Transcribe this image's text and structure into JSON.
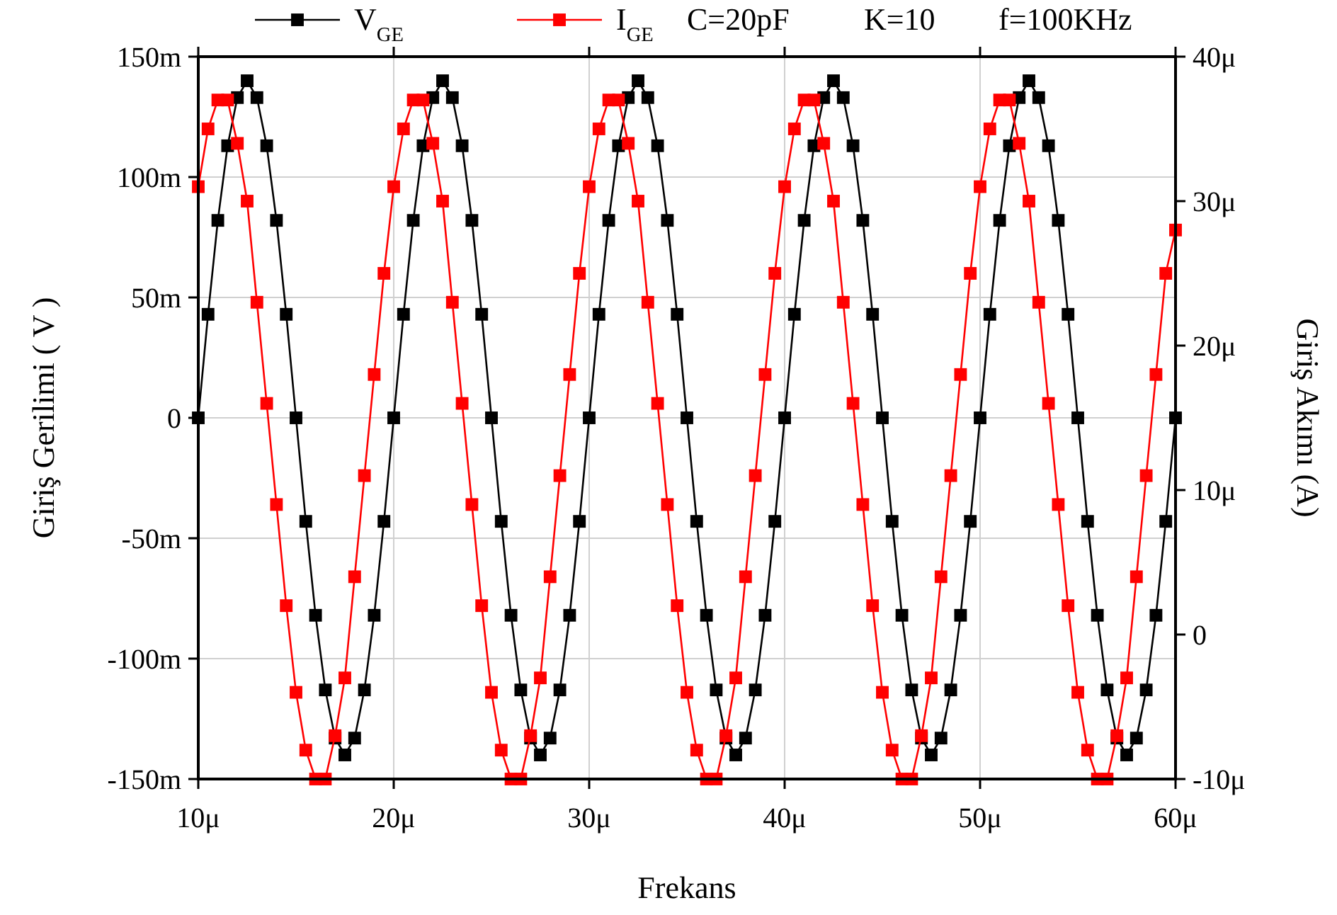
{
  "chart_data": {
    "type": "line",
    "xlabel": "Frekans",
    "ylabel": "Giriş Gerilimi ( V )",
    "y2label": "Giriş Akımı (A)",
    "annotations": [
      "C=20pF",
      "K=10",
      "f=100KHz"
    ],
    "x": [
      10,
      10.5,
      11,
      11.5,
      12,
      12.5,
      13,
      13.5,
      14,
      14.5,
      15,
      15.5,
      16,
      16.5,
      17,
      17.5,
      18,
      18.5,
      19,
      19.5,
      20,
      20.5,
      21,
      21.5,
      22,
      22.5,
      23,
      23.5,
      24,
      24.5,
      25,
      25.5,
      26,
      26.5,
      27,
      27.5,
      28,
      28.5,
      29,
      29.5,
      30,
      30.5,
      31,
      31.5,
      32,
      32.5,
      33,
      33.5,
      34,
      34.5,
      35,
      35.5,
      36,
      36.5,
      37,
      37.5,
      38,
      38.5,
      39,
      39.5,
      40,
      40.5,
      41,
      41.5,
      42,
      42.5,
      43,
      43.5,
      44,
      44.5,
      45,
      45.5,
      46,
      46.5,
      47,
      47.5,
      48,
      48.5,
      49,
      49.5,
      50,
      50.5,
      51,
      51.5,
      52,
      52.5,
      53,
      53.5,
      54,
      54.5,
      55,
      55.5,
      56,
      56.5,
      57,
      57.5,
      58,
      58.5,
      59,
      59.5,
      60
    ],
    "series": [
      {
        "name": "V$_{GE}$",
        "color": "#000000",
        "values": [
          0,
          43,
          82,
          113,
          133,
          140,
          133,
          113,
          82,
          43,
          0,
          -43,
          -82,
          -113,
          -133,
          -140,
          -133,
          -113,
          -82,
          -43,
          0,
          43,
          82,
          113,
          133,
          140,
          133,
          113,
          82,
          43,
          0,
          -43,
          -82,
          -113,
          -133,
          -140,
          -133,
          -113,
          -82,
          -43,
          0,
          43,
          82,
          113,
          133,
          140,
          133,
          113,
          82,
          43,
          0,
          -43,
          -82,
          -113,
          -133,
          -140,
          -133,
          -113,
          -82,
          -43,
          0,
          43,
          82,
          113,
          133,
          140,
          133,
          113,
          82,
          43,
          0,
          -43,
          -82,
          -113,
          -133,
          -140,
          -133,
          -113,
          -82,
          -43,
          0,
          43,
          82,
          113,
          133,
          140,
          133,
          113,
          82,
          43,
          0,
          -43,
          -82,
          -113,
          -133,
          -140,
          -133,
          -113,
          -82,
          -43,
          0
        ]
      },
      {
        "name": "I$_{GE}$",
        "color": "#ff0000",
        "axis": "y2",
        "values": [
          31,
          35,
          37,
          37,
          34,
          30,
          23,
          16,
          9,
          2,
          -4,
          -8,
          -10,
          -10,
          -7,
          -3,
          4,
          11,
          18,
          25,
          31,
          35,
          37,
          37,
          34,
          30,
          23,
          16,
          9,
          2,
          -4,
          -8,
          -10,
          -10,
          -7,
          -3,
          4,
          11,
          18,
          25,
          31,
          35,
          37,
          37,
          34,
          30,
          23,
          16,
          9,
          2,
          -4,
          -8,
          -10,
          -10,
          -7,
          -3,
          4,
          11,
          18,
          25,
          31,
          35,
          37,
          37,
          34,
          30,
          23,
          16,
          9,
          2,
          -4,
          -8,
          -10,
          -10,
          -7,
          -3,
          4,
          11,
          18,
          25,
          31,
          35,
          37,
          37,
          34,
          30,
          23,
          16,
          9,
          2,
          -4,
          -8,
          -10,
          -10,
          -7,
          -3,
          4,
          11,
          18,
          25,
          28
        ]
      }
    ],
    "xlim": [
      10,
      60
    ],
    "xticks": [
      {
        "value": 10,
        "label": "10μ"
      },
      {
        "value": 20,
        "label": "20μ"
      },
      {
        "value": 30,
        "label": "30μ"
      },
      {
        "value": 40,
        "label": "40μ"
      },
      {
        "value": 50,
        "label": "50μ"
      },
      {
        "value": 60,
        "label": "60μ"
      }
    ],
    "ylim": [
      -150,
      150
    ],
    "yticks": [
      {
        "value": -150,
        "label": "-150m"
      },
      {
        "value": -100,
        "label": "-100m"
      },
      {
        "value": -50,
        "label": "-50m"
      },
      0,
      {
        "value": 50,
        "label": "50m"
      },
      {
        "value": 100,
        "label": "100m"
      },
      {
        "value": 150,
        "label": "150m"
      }
    ],
    "y2lim": [
      -10,
      40
    ],
    "y2ticks": [
      {
        "value": -10,
        "label": "-10μ"
      },
      0,
      {
        "value": 10,
        "label": "10μ"
      },
      {
        "value": 20,
        "label": "20μ"
      },
      {
        "value": 30,
        "label": "30μ"
      },
      {
        "value": 40,
        "label": "40μ"
      }
    ],
    "grid": true,
    "legend": "top",
    "marker": "square",
    "line_style": "solid"
  }
}
